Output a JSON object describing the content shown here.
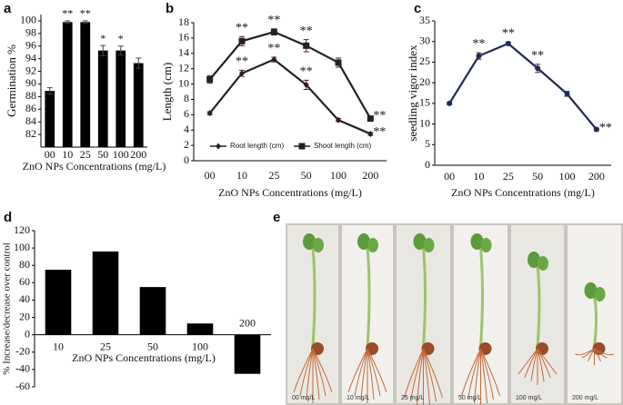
{
  "chart_data": [
    {
      "type": "bar",
      "panel_label": "a",
      "ylabel": "Germination %",
      "xlabel": "ZnO NPs Concentrations (mg/L)",
      "categories": [
        "00",
        "10",
        "25",
        "50",
        "100",
        "200"
      ],
      "values": [
        88.9,
        99.8,
        99.8,
        95.3,
        95.3,
        93.3
      ],
      "errors": [
        0.5,
        0.2,
        0.2,
        0.8,
        0.7,
        0.8
      ],
      "annotations": [
        null,
        "**",
        "**",
        "*",
        "*",
        null
      ],
      "color": "#000000",
      "ylim": [
        80,
        101
      ],
      "yticks": [
        82,
        84,
        86,
        88,
        90,
        92,
        94,
        96,
        98,
        100
      ]
    },
    {
      "type": "line",
      "panel_label": "b",
      "ylabel": "Length (cm)",
      "xlabel": "ZnO NPs Concentrations (mg/L)",
      "categories": [
        "00",
        "10",
        "25",
        "50",
        "100",
        "200"
      ],
      "series": [
        {
          "name": "Root length (cm)",
          "color": "#222222",
          "marker": "diamond",
          "values": [
            6.2,
            11.4,
            13.2,
            9.9,
            5.3,
            3.5
          ],
          "errors": [
            0.2,
            0.4,
            0.3,
            0.6,
            0.2,
            0.2
          ],
          "annotations": [
            null,
            "**",
            "**",
            "**",
            null,
            "**"
          ]
        },
        {
          "name": "Shoot length (cm)",
          "color": "#222222",
          "marker": "square",
          "values": [
            10.6,
            15.6,
            16.8,
            15.0,
            12.8,
            5.5
          ],
          "errors": [
            0.5,
            0.6,
            0.4,
            0.8,
            0.6,
            0.3
          ],
          "annotations": [
            null,
            "**",
            "**",
            "**",
            null,
            "**"
          ]
        }
      ],
      "ylim": [
        0,
        18
      ],
      "yticks": [
        0,
        2,
        4,
        6,
        8,
        10,
        12,
        14,
        16,
        18
      ],
      "legend": "bottom"
    },
    {
      "type": "line",
      "panel_label": "c",
      "ylabel": "seedling vigor index",
      "xlabel": "ZnO NPs Concentrations (mg/L)",
      "categories": [
        "00",
        "10",
        "25",
        "50",
        "100",
        "200"
      ],
      "series": [
        {
          "color": "#1f2a5c",
          "marker": "circle",
          "values": [
            15,
            26.5,
            29.5,
            23.5,
            17.3,
            8.7
          ],
          "errors": [
            0.3,
            0.8,
            0.4,
            1.0,
            0.6,
            0.3
          ],
          "annotations": [
            null,
            "**",
            "**",
            "**",
            null,
            "**"
          ]
        }
      ],
      "ylim": [
        0,
        35
      ],
      "yticks": [
        0,
        5,
        10,
        15,
        20,
        25,
        30,
        35
      ]
    },
    {
      "type": "bar",
      "panel_label": "d",
      "ylabel": "% Increase/decrease over control",
      "xlabel": "ZnO NPs Concentrations (mg/L)",
      "categories": [
        "10",
        "25",
        "50",
        "100",
        "200"
      ],
      "values": [
        75,
        96,
        55,
        13,
        -45
      ],
      "color": "#000000",
      "ylim": [
        -60,
        120
      ],
      "yticks": [
        -60,
        -40,
        -20,
        0,
        20,
        40,
        60,
        80,
        100,
        120
      ]
    }
  ],
  "photo": {
    "panel_label": "e",
    "captions": [
      "00 mg/L",
      "10 mg/L",
      "25 mg/L",
      "50 mg/L",
      "100 mg/L",
      "200 mg/L"
    ]
  }
}
